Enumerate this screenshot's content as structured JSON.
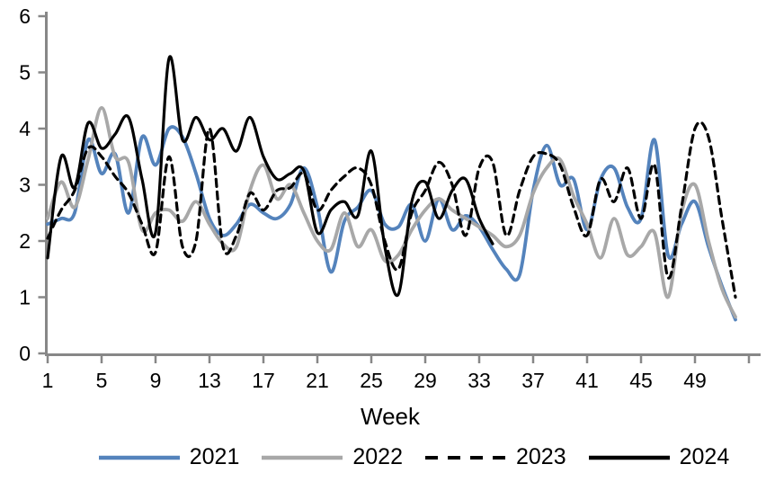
{
  "chart_data": {
    "type": "line",
    "title": "",
    "xlabel": "Week",
    "ylim": [
      0,
      6
    ],
    "xlim": [
      1,
      53
    ],
    "grid": false,
    "legend_position": "bottom",
    "axis_color": "#878787",
    "text_color": "#000000",
    "y_ticks": [
      0,
      1,
      2,
      3,
      4,
      5,
      6
    ],
    "x_ticks": [
      1,
      5,
      9,
      13,
      17,
      21,
      25,
      29,
      33,
      37,
      41,
      45,
      49
    ],
    "x_tick_marks": [
      1,
      5,
      9,
      13,
      17,
      21,
      25,
      29,
      33,
      37,
      41,
      45,
      49,
      53
    ],
    "x_unit": "week",
    "series": [
      {
        "name": "2021",
        "color": "#5483bc",
        "style": "solid",
        "width": 3.8,
        "start_week": 1,
        "values": [
          2.3,
          2.4,
          2.5,
          3.8,
          3.2,
          3.55,
          2.5,
          3.85,
          3.35,
          4.0,
          3.85,
          3.2,
          2.4,
          2.1,
          2.3,
          2.65,
          2.5,
          2.4,
          2.65,
          3.3,
          2.6,
          1.45,
          2.35,
          2.6,
          2.9,
          2.3,
          2.25,
          2.65,
          2.0,
          2.75,
          2.2,
          2.45,
          2.25,
          1.85,
          1.5,
          1.4,
          2.9,
          3.7,
          3.0,
          3.1,
          2.2,
          3.1,
          3.3,
          2.6,
          2.4,
          3.8,
          1.75,
          2.3,
          2.7,
          1.9,
          1.2,
          0.6
        ]
      },
      {
        "name": "2022",
        "color": "#a8a8a8",
        "style": "solid",
        "width": 3.8,
        "start_week": 1,
        "values": [
          2.4,
          3.05,
          2.6,
          3.45,
          4.37,
          3.5,
          3.4,
          2.2,
          2.5,
          2.55,
          2.35,
          2.7,
          2.3,
          1.95,
          1.9,
          2.9,
          3.35,
          2.75,
          3.0,
          2.5,
          2.0,
          1.85,
          2.5,
          1.9,
          2.2,
          1.65,
          1.75,
          2.2,
          2.55,
          2.75,
          2.55,
          2.4,
          2.25,
          2.1,
          1.9,
          2.1,
          2.85,
          3.3,
          3.45,
          2.8,
          2.3,
          1.7,
          2.4,
          1.75,
          1.9,
          2.15,
          1.0,
          2.5,
          3.0,
          2.0,
          1.15,
          0.65
        ]
      },
      {
        "name": "2023",
        "color": "#000000",
        "style": "dashed",
        "width": 3.2,
        "start_week": 1,
        "values": [
          2.05,
          2.55,
          2.9,
          3.65,
          3.5,
          3.15,
          2.85,
          2.3,
          1.8,
          3.5,
          1.9,
          2.0,
          4.0,
          1.9,
          2.1,
          2.85,
          2.55,
          2.9,
          2.95,
          3.2,
          2.55,
          2.9,
          3.15,
          3.3,
          3.0,
          2.0,
          1.5,
          2.5,
          2.9,
          3.4,
          3.0,
          2.1,
          3.3,
          3.4,
          2.1,
          2.9,
          3.5,
          3.55,
          3.35,
          2.6,
          2.1,
          3.1,
          2.7,
          3.3,
          2.4,
          3.35,
          1.35,
          2.6,
          4.0,
          3.85,
          2.4,
          1.0
        ]
      },
      {
        "name": "2024",
        "color": "#000000",
        "style": "solid",
        "width": 3.2,
        "start_week": 1,
        "values": [
          1.7,
          3.5,
          2.95,
          4.1,
          3.65,
          3.9,
          4.2,
          3.1,
          2.15,
          5.25,
          3.8,
          4.2,
          3.8,
          4.0,
          3.6,
          4.2,
          3.5,
          3.1,
          3.2,
          3.25,
          2.15,
          2.55,
          2.7,
          2.45,
          3.6,
          1.9,
          1.05,
          2.7,
          3.05,
          2.4,
          2.9,
          3.1,
          2.4,
          1.95
        ]
      }
    ]
  }
}
